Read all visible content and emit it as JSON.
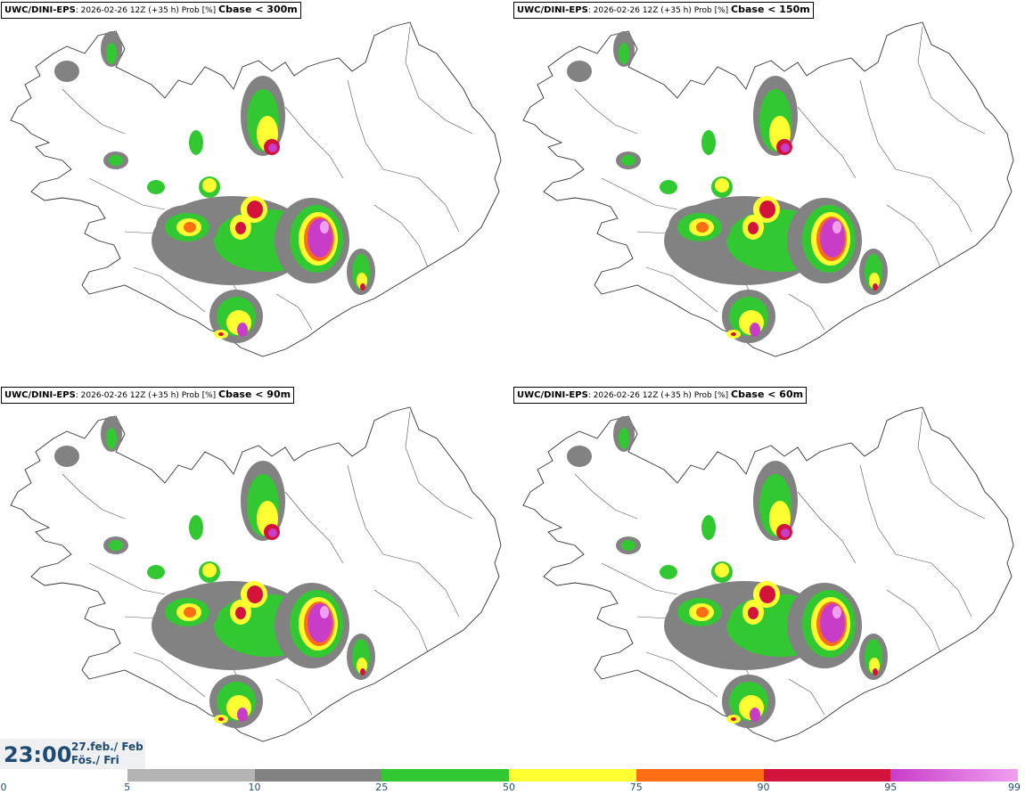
{
  "panels": [
    {
      "model": "UWC/DINI-EPS",
      "info": ": 2026-02-26 12Z (+35 h) Prob [%]",
      "variable": "Cbase < 300m"
    },
    {
      "model": "UWC/DINI-EPS",
      "info": ": 2026-02-26 12Z (+35 h) Prob [%]",
      "variable": "Cbase < 150m"
    },
    {
      "model": "UWC/DINI-EPS",
      "info": ": 2026-02-26 12Z (+35 h) Prob [%]",
      "variable": "Cbase < 90m"
    },
    {
      "model": "UWC/DINI-EPS",
      "info": ": 2026-02-26 12Z (+35 h) Prob [%]",
      "variable": "Cbase < 60m"
    }
  ],
  "valid_time": {
    "time": "23:00",
    "date_line1": "27.feb./ Feb",
    "date_line2": "Fös./ Fri"
  },
  "legend": {
    "ticks": [
      "0",
      "5",
      "10",
      "25",
      "50",
      "75",
      "90",
      "95",
      "99"
    ],
    "colors": [
      "#ffffff",
      "#b4b4b4",
      "#828282",
      "#32c832",
      "#ffff32",
      "#ff6e14",
      "#d2143c",
      "#c83cc8",
      "#f0a0f0"
    ]
  },
  "map": {
    "region": "Iceland",
    "field": "cloud base probability"
  }
}
